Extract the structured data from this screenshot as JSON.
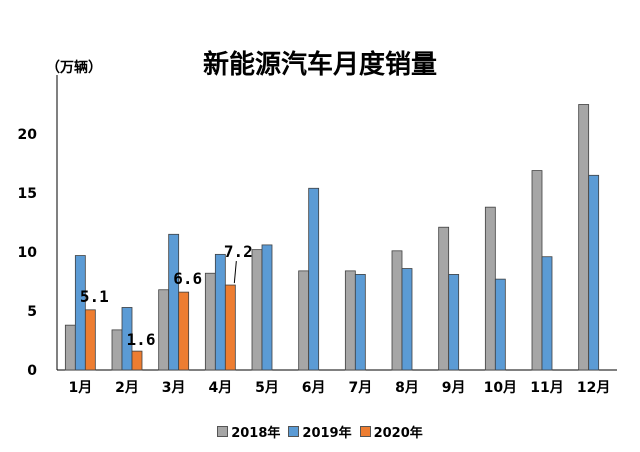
{
  "chart_data": {
    "type": "bar",
    "title": "新能源汽车月度销量",
    "unit_label": "（万辆）",
    "categories": [
      "1月",
      "2月",
      "3月",
      "4月",
      "5月",
      "6月",
      "7月",
      "8月",
      "9月",
      "10月",
      "11月",
      "12月"
    ],
    "ylim": [
      0,
      25
    ],
    "yticks": [
      0,
      5,
      10,
      15,
      20
    ],
    "grid": false,
    "legend_position": "bottom",
    "series": [
      {
        "name": "2018年",
        "color": "#a6a6a6",
        "values": [
          3.8,
          3.4,
          6.8,
          8.2,
          10.2,
          8.4,
          8.4,
          10.1,
          12.1,
          13.8,
          16.9,
          22.5
        ]
      },
      {
        "name": "2019年",
        "color": "#5b9bd5",
        "values": [
          9.7,
          5.3,
          11.5,
          9.8,
          10.6,
          15.4,
          8.1,
          8.6,
          8.1,
          7.7,
          9.6,
          16.5
        ]
      },
      {
        "name": "2020年",
        "color": "#ed7d31",
        "values": [
          5.1,
          1.6,
          6.6,
          7.2,
          null,
          null,
          null,
          null,
          null,
          null,
          null,
          null
        ],
        "data_labels": [
          "5.1",
          "1.6",
          "6.6",
          "7.2"
        ]
      }
    ]
  }
}
